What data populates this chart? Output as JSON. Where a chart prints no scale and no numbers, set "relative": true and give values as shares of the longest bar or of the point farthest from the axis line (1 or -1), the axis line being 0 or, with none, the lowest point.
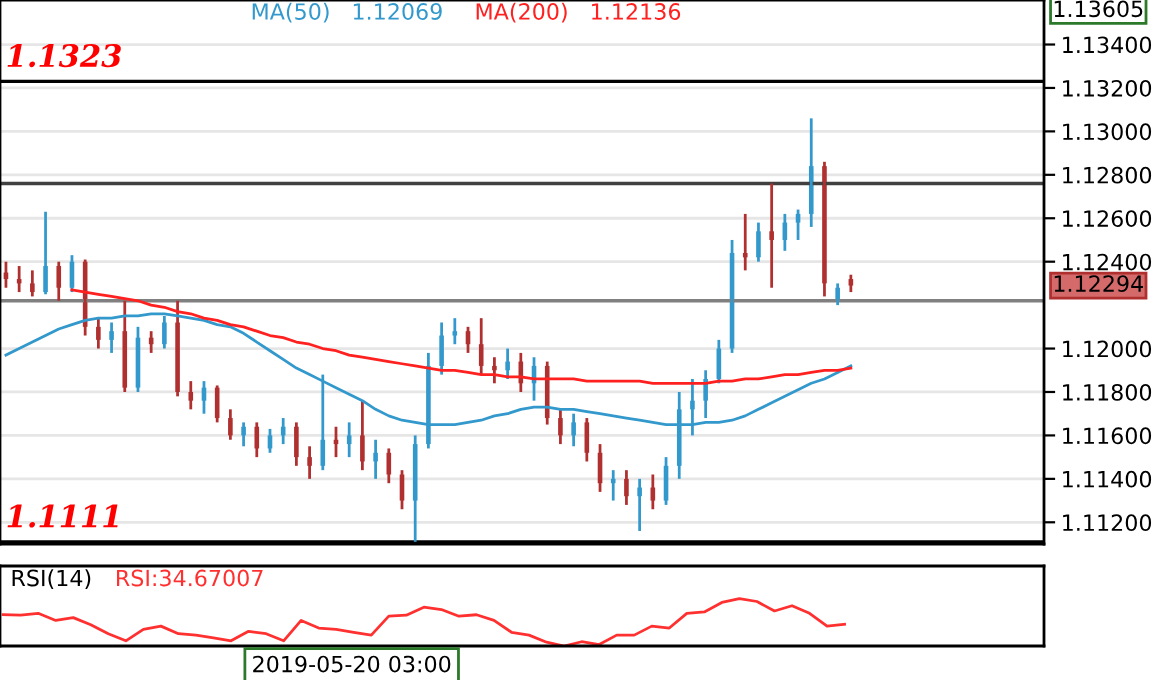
{
  "chart_data": [
    {
      "type": "candlestick",
      "categories": [
        null,
        null,
        null,
        null,
        null,
        null,
        null,
        null,
        null,
        null,
        null,
        null,
        null,
        null,
        null,
        null,
        null,
        null,
        null,
        null,
        null,
        null,
        null,
        null,
        null,
        null,
        null,
        null,
        null,
        null,
        null,
        null,
        null,
        null,
        null,
        null,
        null,
        null,
        null,
        null,
        null,
        null,
        null,
        null,
        null,
        null,
        null,
        null,
        null,
        null,
        null,
        null,
        null,
        null,
        null,
        null,
        null,
        null,
        null,
        null,
        null,
        null,
        null,
        null,
        null
      ],
      "ohlc": [
        [
          1.1235,
          1.124,
          1.1228,
          1.1232
        ],
        [
          1.1232,
          1.1238,
          1.1226,
          1.123
        ],
        [
          1.123,
          1.1236,
          1.1224,
          1.1226
        ],
        [
          1.1226,
          1.1263,
          1.1225,
          1.1238
        ],
        [
          1.1238,
          1.124,
          1.1222,
          1.1228
        ],
        [
          1.1228,
          1.1243,
          1.1226,
          1.124
        ],
        [
          1.124,
          1.1241,
          1.1206,
          1.121
        ],
        [
          1.121,
          1.1214,
          1.12,
          1.1204
        ],
        [
          1.1204,
          1.1212,
          1.1198,
          1.1208
        ],
        [
          1.1208,
          1.1222,
          1.118,
          1.1182
        ],
        [
          1.1182,
          1.121,
          1.118,
          1.1205
        ],
        [
          1.1205,
          1.1208,
          1.1198,
          1.1202
        ],
        [
          1.1202,
          1.1215,
          1.12,
          1.1212
        ],
        [
          1.1212,
          1.1222,
          1.1178,
          1.118
        ],
        [
          1.118,
          1.1185,
          1.1172,
          1.1176
        ],
        [
          1.1176,
          1.1185,
          1.117,
          1.1182
        ],
        [
          1.1182,
          1.1183,
          1.1166,
          1.1168
        ],
        [
          1.1168,
          1.1172,
          1.1158,
          1.116
        ],
        [
          1.116,
          1.1166,
          1.1155,
          1.1164
        ],
        [
          1.1164,
          1.1166,
          1.115,
          1.1154
        ],
        [
          1.1154,
          1.1163,
          1.1152,
          1.116
        ],
        [
          1.116,
          1.1168,
          1.1156,
          1.1164
        ],
        [
          1.1164,
          1.1166,
          1.1146,
          1.115
        ],
        [
          1.115,
          1.1155,
          1.114,
          1.1146
        ],
        [
          1.1146,
          1.1188,
          1.1144,
          1.1158
        ],
        [
          1.1158,
          1.1164,
          1.115,
          1.1156
        ],
        [
          1.1156,
          1.1166,
          1.115,
          1.116
        ],
        [
          1.116,
          1.1176,
          1.1144,
          1.1148
        ],
        [
          1.1148,
          1.1158,
          1.114,
          1.1152
        ],
        [
          1.1152,
          1.1154,
          1.1138,
          1.1142
        ],
        [
          1.1142,
          1.1144,
          1.1126,
          1.113
        ],
        [
          1.113,
          1.116,
          1.1111,
          1.1156
        ],
        [
          1.1156,
          1.1198,
          1.1154,
          1.1192
        ],
        [
          1.1192,
          1.1212,
          1.1188,
          1.1206
        ],
        [
          1.1206,
          1.1214,
          1.1202,
          1.1208
        ],
        [
          1.1208,
          1.121,
          1.1198,
          1.1202
        ],
        [
          1.1202,
          1.1214,
          1.1188,
          1.1192
        ],
        [
          1.1192,
          1.1196,
          1.1184,
          1.119
        ],
        [
          1.119,
          1.12,
          1.1186,
          1.1194
        ],
        [
          1.1194,
          1.1198,
          1.118,
          1.1184
        ],
        [
          1.1184,
          1.1196,
          1.1176,
          1.1192
        ],
        [
          1.1192,
          1.1194,
          1.1165,
          1.1168
        ],
        [
          1.1168,
          1.1172,
          1.1156,
          1.116
        ],
        [
          1.116,
          1.117,
          1.1155,
          1.1166
        ],
        [
          1.1166,
          1.1168,
          1.1148,
          1.1152
        ],
        [
          1.1152,
          1.1156,
          1.1134,
          1.1138
        ],
        [
          1.1138,
          1.1144,
          1.113,
          1.114
        ],
        [
          1.114,
          1.1144,
          1.1128,
          1.1132
        ],
        [
          1.1132,
          1.114,
          1.1116,
          1.1136
        ],
        [
          1.1136,
          1.1142,
          1.1126,
          1.113
        ],
        [
          1.113,
          1.115,
          1.1128,
          1.1146
        ],
        [
          1.1146,
          1.118,
          1.114,
          1.1172
        ],
        [
          1.1172,
          1.1186,
          1.116,
          1.1176
        ],
        [
          1.1176,
          1.119,
          1.1168,
          1.1186
        ],
        [
          1.1186,
          1.1204,
          1.1184,
          1.12
        ],
        [
          1.12,
          1.125,
          1.1198,
          1.1244
        ],
        [
          1.1244,
          1.1262,
          1.1236,
          1.1242
        ],
        [
          1.1242,
          1.1258,
          1.124,
          1.1254
        ],
        [
          1.1254,
          1.1276,
          1.1228,
          1.125
        ],
        [
          1.125,
          1.1262,
          1.1245,
          1.1258
        ],
        [
          1.1258,
          1.1264,
          1.125,
          1.1262
        ],
        [
          1.1262,
          1.1306,
          1.1256,
          1.1284
        ],
        [
          1.1284,
          1.1286,
          1.1224,
          1.123
        ],
        [
          1.1222,
          1.123,
          1.122,
          1.1228
        ],
        [
          1.1232,
          1.1234,
          1.1226,
          1.1229
        ]
      ],
      "colors": [
        "#b03030",
        "#b03030",
        "#b03030",
        "#3399cc",
        "#b03030",
        "#3399cc",
        "#b03030",
        "#b03030",
        "#3399cc",
        "#b03030",
        "#3399cc",
        "#b03030",
        "#3399cc",
        "#b03030",
        "#b03030",
        "#3399cc",
        "#b03030",
        "#b03030",
        "#3399cc",
        "#b03030",
        "#3399cc",
        "#3399cc",
        "#b03030",
        "#b03030",
        "#3399cc",
        "#b03030",
        "#3399cc",
        "#b03030",
        "#3399cc",
        "#b03030",
        "#b03030",
        "#3399cc",
        "#3399cc",
        "#3399cc",
        "#3399cc",
        "#b03030",
        "#b03030",
        "#b03030",
        "#3399cc",
        "#b03030",
        "#3399cc",
        "#b03030",
        "#b03030",
        "#3399cc",
        "#b03030",
        "#b03030",
        "#3399cc",
        "#b03030",
        "#3399cc",
        "#b03030",
        "#3399cc",
        "#3399cc",
        "#3399cc",
        "#3399cc",
        "#3399cc",
        "#3399cc",
        "#b03030",
        "#3399cc",
        "#b03030",
        "#3399cc",
        "#3399cc",
        "#3399cc",
        "#b03030",
        "#3399cc",
        "#b03030"
      ],
      "series": [
        {
          "name": "MA(50)",
          "type": "line",
          "color": "#3399cc",
          "values": [
            1.1197,
            1.12,
            1.1203,
            1.1206,
            1.1209,
            1.1211,
            1.1213,
            1.1214,
            1.1214,
            1.1215,
            1.1215,
            1.1216,
            1.1216,
            1.1215,
            1.1214,
            1.1213,
            1.1211,
            1.121,
            1.1207,
            1.1203,
            1.1199,
            1.1195,
            1.1191,
            1.1188,
            1.1185,
            1.1182,
            1.1179,
            1.1176,
            1.1172,
            1.1169,
            1.1167,
            1.1166,
            1.1165,
            1.1165,
            1.1165,
            1.1166,
            1.1167,
            1.1169,
            1.117,
            1.1172,
            1.1173,
            1.1173,
            1.1172,
            1.1172,
            1.1171,
            1.117,
            1.1169,
            1.1168,
            1.1167,
            1.1166,
            1.1165,
            1.1165,
            1.1165,
            1.1166,
            1.1166,
            1.1167,
            1.1169,
            1.1172,
            1.1175,
            1.1178,
            1.1181,
            1.1184,
            1.1186,
            1.1189,
            1.1192
          ]
        },
        {
          "name": "MA(200)",
          "type": "line",
          "color": "#ff2020",
          "values": [
            null,
            null,
            null,
            null,
            null,
            1.1227,
            1.1226,
            1.1225,
            1.1224,
            1.1223,
            1.1222,
            1.122,
            1.1219,
            1.1217,
            1.1216,
            1.1214,
            1.1213,
            1.1211,
            1.121,
            1.1208,
            1.1206,
            1.1205,
            1.1203,
            1.1202,
            1.12,
            1.1199,
            1.1197,
            1.1196,
            1.1195,
            1.1194,
            1.1193,
            1.1192,
            1.1191,
            1.119,
            1.119,
            1.1189,
            1.1188,
            1.1188,
            1.1187,
            1.1187,
            1.1186,
            1.1186,
            1.1186,
            1.1186,
            1.1185,
            1.1185,
            1.1185,
            1.1185,
            1.1185,
            1.1184,
            1.1184,
            1.1184,
            1.1184,
            1.1184,
            1.1185,
            1.1185,
            1.1186,
            1.1186,
            1.1187,
            1.1188,
            1.1188,
            1.1189,
            1.119,
            1.119,
            1.1191
          ]
        }
      ],
      "ylim": [
        1.111,
        1.13605
      ],
      "yticks": [
        {
          "value": 1.112,
          "label": "1.11200"
        },
        {
          "value": 1.114,
          "label": "1.11400"
        },
        {
          "value": 1.116,
          "label": "1.11600"
        },
        {
          "value": 1.118,
          "label": "1.11800"
        },
        {
          "value": 1.12,
          "label": "1.12000"
        },
        {
          "value": 1.124,
          "label": "1.12400"
        },
        {
          "value": 1.126,
          "label": "1.12600"
        },
        {
          "value": 1.128,
          "label": "1.12800"
        },
        {
          "value": 1.13,
          "label": "1.13000"
        },
        {
          "value": 1.132,
          "label": "1.13200"
        },
        {
          "value": 1.134,
          "label": "1.13400"
        }
      ],
      "tick_labels": "y",
      "grid": "y",
      "ref_lines": [
        {
          "axis": "y",
          "value": 1.1323,
          "label": "1.1323",
          "color": "#000000"
        },
        {
          "axis": "y",
          "value": 1.1111,
          "label": "1.1111",
          "color": "#000000"
        },
        {
          "axis": "y",
          "value": 1.1276,
          "label": null,
          "color": "#404040"
        },
        {
          "axis": "y",
          "value": 1.1222,
          "label": null,
          "color": "#808080"
        }
      ],
      "annotations": [
        "1.12069",
        "1.12136",
        "1.12294",
        "1.13605",
        "2019-05-20 03:00"
      ]
    },
    {
      "type": "line",
      "title": "RSI(14)",
      "annotations": [
        "RSI:34.67007"
      ],
      "relative": true,
      "color": "#ff3030",
      "tick_labels": false,
      "categories": [
        null,
        null,
        null,
        null,
        null,
        null,
        null,
        null,
        null,
        null,
        null,
        null,
        null,
        null,
        null,
        null,
        null,
        null,
        null,
        null,
        null,
        null,
        null,
        null,
        null,
        null,
        null,
        null,
        null,
        null,
        null,
        null,
        null,
        null,
        null,
        null,
        null,
        null,
        null,
        null,
        null,
        null,
        null,
        null,
        null,
        null,
        null,
        null,
        null
      ],
      "values": [
        0.66,
        0.65,
        0.69,
        0.54,
        0.6,
        0.45,
        0.26,
        0.11,
        0.35,
        0.42,
        0.26,
        0.23,
        0.17,
        0.11,
        0.31,
        0.26,
        0.11,
        0.54,
        0.38,
        0.35,
        0.29,
        0.23,
        0.63,
        0.65,
        0.82,
        0.77,
        0.63,
        0.66,
        0.54,
        0.29,
        0.23,
        0.08,
        0.0,
        0.09,
        0.03,
        0.23,
        0.23,
        0.42,
        0.38,
        0.69,
        0.72,
        0.92,
        1.0,
        0.94,
        0.74,
        0.85,
        0.69,
        0.42,
        0.46
      ]
    }
  ]
}
